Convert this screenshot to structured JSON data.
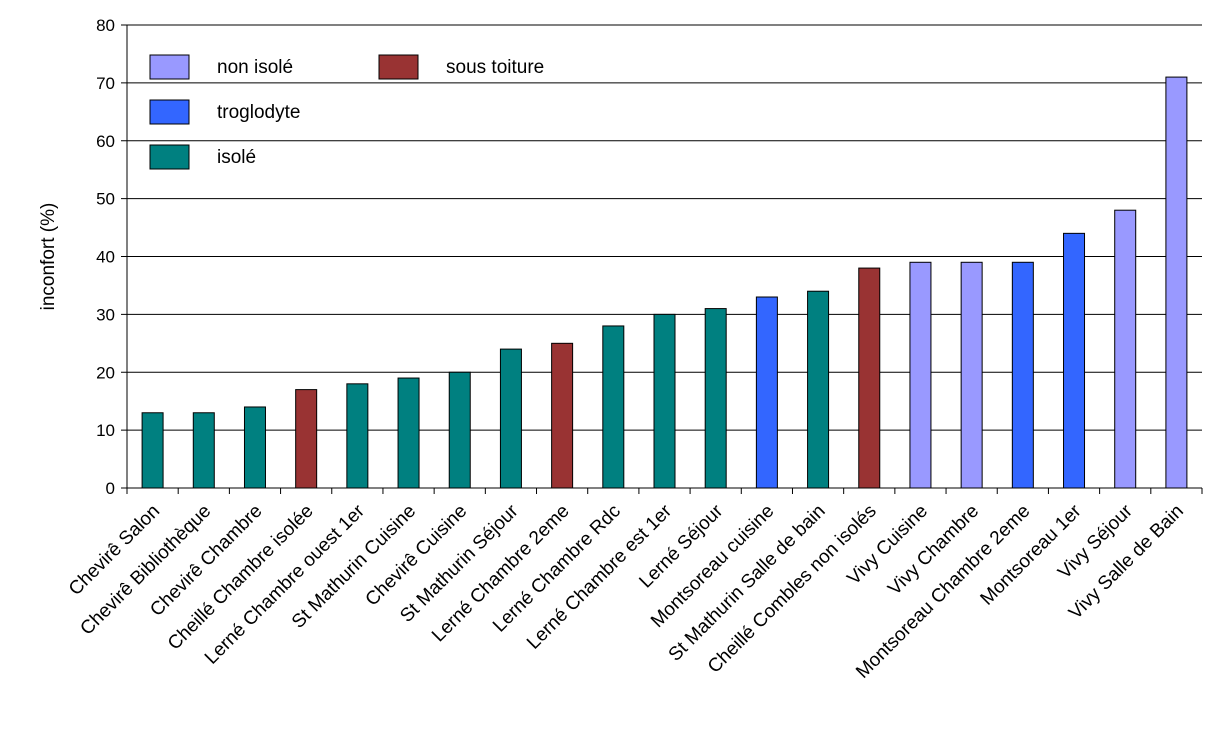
{
  "chart_data": {
    "type": "bar",
    "title": "",
    "xlabel": "",
    "ylabel": "inconfort (%)",
    "ylim": [
      0,
      80
    ],
    "yticks": [
      0,
      10,
      20,
      30,
      40,
      50,
      60,
      70,
      80
    ],
    "grid": "horizontal",
    "legend_position": "top-left",
    "legend": [
      {
        "key": "non_isole",
        "label": "non isolé",
        "color": "#9999ff"
      },
      {
        "key": "sous_toiture",
        "label": "sous toiture",
        "color": "#993333"
      },
      {
        "key": "troglodyte",
        "label": "troglodyte",
        "color": "#3366ff"
      },
      {
        "key": "isole",
        "label": "isolé",
        "color": "#008080"
      }
    ],
    "bars": [
      {
        "category": "Chevirê Salon",
        "value": 13,
        "group": "isole"
      },
      {
        "category": "Chevirê Bibliothèque",
        "value": 13,
        "group": "isole"
      },
      {
        "category": "Chevirê Chambre",
        "value": 14,
        "group": "isole"
      },
      {
        "category": "Cheillé Chambre isolée",
        "value": 17,
        "group": "sous_toiture"
      },
      {
        "category": "Lerné Chambre ouest 1er",
        "value": 18,
        "group": "isole"
      },
      {
        "category": "St Mathurin Cuisine",
        "value": 19,
        "group": "isole"
      },
      {
        "category": "Chevirê Cuisine",
        "value": 20,
        "group": "isole"
      },
      {
        "category": "St Mathurin Séjour",
        "value": 24,
        "group": "isole"
      },
      {
        "category": "Lerné Chambre 2eme",
        "value": 25,
        "group": "sous_toiture"
      },
      {
        "category": "Lerné Chambre Rdc",
        "value": 28,
        "group": "isole"
      },
      {
        "category": "Lerné Chambre est 1er",
        "value": 30,
        "group": "isole"
      },
      {
        "category": "Lerné Séjour",
        "value": 31,
        "group": "isole"
      },
      {
        "category": "Montsoreau cuisine",
        "value": 33,
        "group": "troglodyte"
      },
      {
        "category": "St Mathurin Salle de bain",
        "value": 34,
        "group": "isole"
      },
      {
        "category": "Cheillé Combles non isolés",
        "value": 38,
        "group": "sous_toiture"
      },
      {
        "category": "Vivy Cuisine",
        "value": 39,
        "group": "non_isole"
      },
      {
        "category": "Vivy Chambre",
        "value": 39,
        "group": "non_isole"
      },
      {
        "category": "Montsoreau Chambre 2eme",
        "value": 39,
        "group": "troglodyte"
      },
      {
        "category": "Montsoreau 1er",
        "value": 44,
        "group": "troglodyte"
      },
      {
        "category": "Vivy Séjour",
        "value": 48,
        "group": "non_isole"
      },
      {
        "category": "Vivy Salle de Bain",
        "value": 71,
        "group": "non_isole"
      }
    ]
  }
}
